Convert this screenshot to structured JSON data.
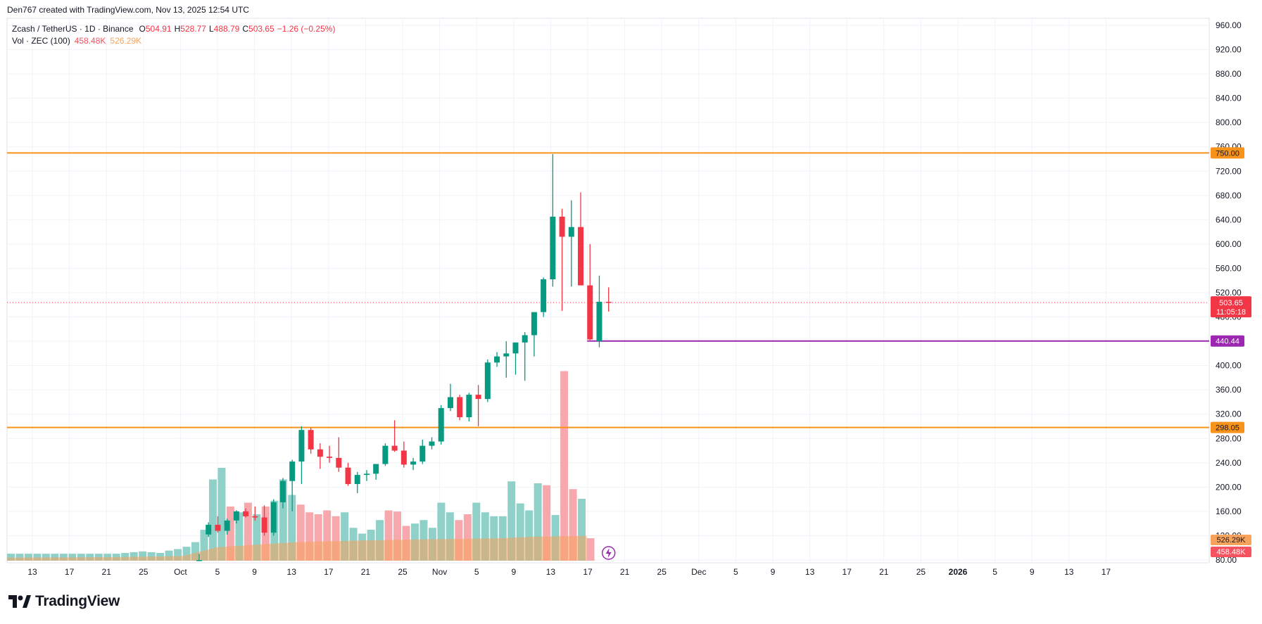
{
  "header": {
    "credit": "Den767 created with TradingView.com, Nov 13, 2025 12:54 UTC"
  },
  "legend": {
    "symbol": "Zcash / TetherUS · 1D · Binance",
    "open_label": "O",
    "open": "504.91",
    "high_label": "H",
    "high": "528.77",
    "low_label": "L",
    "low": "488.79",
    "close_label": "C",
    "close": "503.65",
    "change": "−1.26 (−0.25%)",
    "vol_label": "Vol · ZEC (100)",
    "vol_value": "458.48K",
    "vol_ma": "526.29K"
  },
  "footer": {
    "brand": "TradingView"
  },
  "colors": {
    "up": "#089981",
    "down": "#f23645",
    "vol_up": "#8fd1c8",
    "vol_down": "#f7a8ad",
    "vol_ma": "#f7a35c",
    "level": "#f7931a",
    "purple": "#9c27b0"
  },
  "chart_data": {
    "type": "candlestick",
    "y_axis": {
      "min": 80,
      "max": 960,
      "step": 40,
      "ticks": [
        "960.00",
        "920.00",
        "880.00",
        "840.00",
        "800.00",
        "760.00",
        "720.00",
        "680.00",
        "640.00",
        "600.00",
        "560.00",
        "520.00",
        "480.00",
        "440.00",
        "400.00",
        "360.00",
        "320.00",
        "280.00",
        "240.00",
        "200.00",
        "160.00",
        "120.00",
        "80.00"
      ]
    },
    "x_axis": {
      "labels": [
        "13",
        "17",
        "21",
        "25",
        "Oct",
        "5",
        "9",
        "13",
        "17",
        "21",
        "25",
        "Nov",
        "5",
        "9",
        "13",
        "17",
        "21",
        "25",
        "Dec",
        "5",
        "9",
        "13",
        "17",
        "21",
        "25",
        "2026",
        "5",
        "9",
        "13",
        "17"
      ]
    },
    "candles": [
      {
        "date": "2025-09-30",
        "o": 80,
        "h": 90,
        "l": 78,
        "c": 80
      },
      {
        "date": "2025-10-01",
        "o": 122,
        "h": 142,
        "l": 118,
        "c": 138
      },
      {
        "date": "2025-10-02",
        "o": 138,
        "h": 152,
        "l": 125,
        "c": 128
      },
      {
        "date": "2025-10-03",
        "o": 128,
        "h": 148,
        "l": 122,
        "c": 145
      },
      {
        "date": "2025-10-04",
        "o": 145,
        "h": 162,
        "l": 140,
        "c": 160
      },
      {
        "date": "2025-10-05",
        "o": 160,
        "h": 165,
        "l": 150,
        "c": 152
      },
      {
        "date": "2025-10-06",
        "o": 152,
        "h": 168,
        "l": 145,
        "c": 150
      },
      {
        "date": "2025-10-07",
        "o": 150,
        "h": 170,
        "l": 120,
        "c": 125
      },
      {
        "date": "2025-10-08",
        "o": 125,
        "h": 180,
        "l": 120,
        "c": 175
      },
      {
        "date": "2025-10-09",
        "o": 175,
        "h": 215,
        "l": 165,
        "c": 210
      },
      {
        "date": "2025-10-10",
        "o": 210,
        "h": 245,
        "l": 160,
        "c": 242
      },
      {
        "date": "2025-10-11",
        "o": 242,
        "h": 300,
        "l": 205,
        "c": 294
      },
      {
        "date": "2025-10-12",
        "o": 294,
        "h": 298,
        "l": 255,
        "c": 262
      },
      {
        "date": "2025-10-13",
        "o": 262,
        "h": 272,
        "l": 230,
        "c": 250
      },
      {
        "date": "2025-10-14",
        "o": 250,
        "h": 268,
        "l": 240,
        "c": 248
      },
      {
        "date": "2025-10-15",
        "o": 248,
        "h": 282,
        "l": 225,
        "c": 232
      },
      {
        "date": "2025-10-16",
        "o": 232,
        "h": 240,
        "l": 202,
        "c": 205
      },
      {
        "date": "2025-10-17",
        "o": 205,
        "h": 225,
        "l": 190,
        "c": 220
      },
      {
        "date": "2025-10-18",
        "o": 220,
        "h": 228,
        "l": 210,
        "c": 222
      },
      {
        "date": "2025-10-19",
        "o": 222,
        "h": 232,
        "l": 212,
        "c": 238
      },
      {
        "date": "2025-10-20",
        "o": 238,
        "h": 272,
        "l": 235,
        "c": 268
      },
      {
        "date": "2025-10-21",
        "o": 268,
        "h": 310,
        "l": 258,
        "c": 260
      },
      {
        "date": "2025-10-22",
        "o": 260,
        "h": 275,
        "l": 232,
        "c": 237
      },
      {
        "date": "2025-10-23",
        "o": 237,
        "h": 248,
        "l": 228,
        "c": 242
      },
      {
        "date": "2025-10-24",
        "o": 242,
        "h": 278,
        "l": 238,
        "c": 268
      },
      {
        "date": "2025-10-25",
        "o": 268,
        "h": 282,
        "l": 262,
        "c": 275
      },
      {
        "date": "2025-10-26",
        "o": 275,
        "h": 335,
        "l": 270,
        "c": 330
      },
      {
        "date": "2025-10-27",
        "o": 330,
        "h": 370,
        "l": 325,
        "c": 348
      },
      {
        "date": "2025-10-28",
        "o": 348,
        "h": 352,
        "l": 310,
        "c": 315
      },
      {
        "date": "2025-10-29",
        "o": 315,
        "h": 355,
        "l": 308,
        "c": 352
      },
      {
        "date": "2025-10-30",
        "o": 352,
        "h": 368,
        "l": 300,
        "c": 345
      },
      {
        "date": "2025-10-31",
        "o": 345,
        "h": 410,
        "l": 340,
        "c": 405
      },
      {
        "date": "2025-11-01",
        "o": 405,
        "h": 422,
        "l": 398,
        "c": 415
      },
      {
        "date": "2025-11-02",
        "o": 415,
        "h": 440,
        "l": 380,
        "c": 420
      },
      {
        "date": "2025-11-03",
        "o": 420,
        "h": 430,
        "l": 385,
        "c": 438
      },
      {
        "date": "2025-11-04",
        "o": 438,
        "h": 455,
        "l": 375,
        "c": 450
      },
      {
        "date": "2025-11-05",
        "o": 450,
        "h": 485,
        "l": 415,
        "c": 488
      },
      {
        "date": "2025-11-06",
        "o": 488,
        "h": 545,
        "l": 480,
        "c": 542
      },
      {
        "date": "2025-11-07",
        "o": 542,
        "h": 748,
        "l": 530,
        "c": 645
      },
      {
        "date": "2025-11-08",
        "o": 645,
        "h": 658,
        "l": 490,
        "c": 612
      },
      {
        "date": "2025-11-09",
        "o": 612,
        "h": 672,
        "l": 530,
        "c": 628
      },
      {
        "date": "2025-11-10",
        "o": 628,
        "h": 685,
        "l": 535,
        "c": 532
      },
      {
        "date": "2025-11-11",
        "o": 532,
        "h": 600,
        "l": 442,
        "c": 443
      },
      {
        "date": "2025-11-12",
        "o": 440,
        "h": 548,
        "l": 430,
        "c": 505
      },
      {
        "date": "2025-11-13",
        "o": 504.91,
        "h": 528.77,
        "l": 488.79,
        "c": 503.65
      }
    ],
    "volume_bars": [
      {
        "v": 18,
        "up": true
      },
      {
        "v": 18,
        "up": true
      },
      {
        "v": 18,
        "up": true
      },
      {
        "v": 18,
        "up": true
      },
      {
        "v": 18,
        "up": true
      },
      {
        "v": 18,
        "up": true
      },
      {
        "v": 18,
        "up": true
      },
      {
        "v": 18,
        "up": true
      },
      {
        "v": 18,
        "up": true
      },
      {
        "v": 18,
        "up": true
      },
      {
        "v": 18,
        "up": true
      },
      {
        "v": 18,
        "up": true
      },
      {
        "v": 18,
        "up": true
      },
      {
        "v": 20,
        "up": true
      },
      {
        "v": 22,
        "up": true
      },
      {
        "v": 24,
        "up": true
      },
      {
        "v": 22,
        "up": true
      },
      {
        "v": 20,
        "up": true
      },
      {
        "v": 26,
        "up": true
      },
      {
        "v": 30,
        "up": true
      },
      {
        "v": 36,
        "up": true
      },
      {
        "v": 48,
        "up": true
      },
      {
        "v": 80,
        "up": true
      },
      {
        "v": 210,
        "up": true
      },
      {
        "v": 240,
        "up": true
      },
      {
        "v": 140,
        "up": false
      },
      {
        "v": 125,
        "up": true
      },
      {
        "v": 150,
        "up": false
      },
      {
        "v": 120,
        "up": true
      },
      {
        "v": 140,
        "up": false
      },
      {
        "v": 155,
        "up": true
      },
      {
        "v": 210,
        "up": true
      },
      {
        "v": 170,
        "up": true
      },
      {
        "v": 145,
        "up": false
      },
      {
        "v": 125,
        "up": false
      },
      {
        "v": 120,
        "up": false
      },
      {
        "v": 130,
        "up": false
      },
      {
        "v": 115,
        "up": false
      },
      {
        "v": 125,
        "up": true
      },
      {
        "v": 85,
        "up": true
      },
      {
        "v": 70,
        "up": true
      },
      {
        "v": 80,
        "up": true
      },
      {
        "v": 105,
        "up": true
      },
      {
        "v": 130,
        "up": false
      },
      {
        "v": 127,
        "up": false
      },
      {
        "v": 90,
        "up": false
      },
      {
        "v": 96,
        "up": true
      },
      {
        "v": 105,
        "up": true
      },
      {
        "v": 85,
        "up": true
      },
      {
        "v": 150,
        "up": true
      },
      {
        "v": 125,
        "up": true
      },
      {
        "v": 105,
        "up": false
      },
      {
        "v": 120,
        "up": false
      },
      {
        "v": 150,
        "up": true
      },
      {
        "v": 125,
        "up": true
      },
      {
        "v": 115,
        "up": true
      },
      {
        "v": 115,
        "up": true
      },
      {
        "v": 205,
        "up": true
      },
      {
        "v": 148,
        "up": true
      },
      {
        "v": 130,
        "up": true
      },
      {
        "v": 200,
        "up": true
      },
      {
        "v": 195,
        "up": false
      },
      {
        "v": 118,
        "up": true
      },
      {
        "v": 490,
        "up": false
      },
      {
        "v": 185,
        "up": false
      },
      {
        "v": 160,
        "up": true
      },
      {
        "v": 58,
        "up": false
      }
    ],
    "volume_ma": [
      {
        "i": 0,
        "v": 8
      },
      {
        "i": 12,
        "v": 9
      },
      {
        "i": 20,
        "v": 12
      },
      {
        "i": 24,
        "v": 35
      },
      {
        "i": 33,
        "v": 48
      },
      {
        "i": 40,
        "v": 52
      },
      {
        "i": 47,
        "v": 55
      },
      {
        "i": 56,
        "v": 58
      },
      {
        "i": 60,
        "v": 62
      },
      {
        "i": 66,
        "v": 64
      }
    ],
    "horizontal_levels": [
      {
        "price": 750,
        "label": "750.00"
      },
      {
        "price": 298.05,
        "label": "298.05"
      }
    ],
    "support_line": {
      "price": 440.44,
      "label": "440.44",
      "from_candle": "2025-11-11"
    },
    "last_price": {
      "value": 503.65,
      "label": "503.65",
      "countdown": "11:05:18"
    },
    "volume_tags": [
      {
        "label": "526.29K"
      },
      {
        "label": "458.48K"
      }
    ]
  }
}
